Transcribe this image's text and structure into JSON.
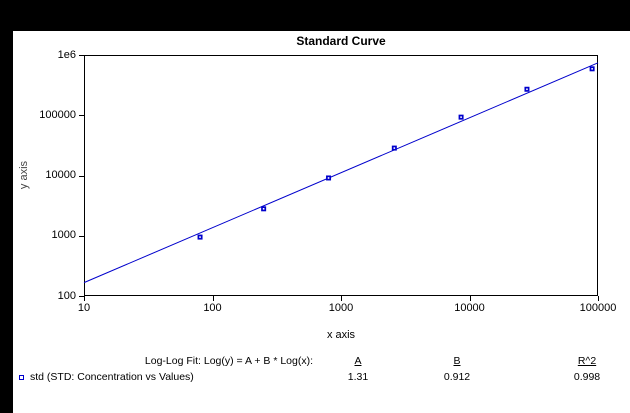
{
  "colors": {
    "page_bg": "#000000",
    "panel_bg": "#FFFFFF",
    "series_blue": "#0000CC",
    "frame_black": "#000000",
    "axis_label_gray": "#444444"
  },
  "chart_data": {
    "type": "scatter",
    "title": "Standard Curve",
    "xlabel": "x axis",
    "ylabel": "y axis",
    "x_scale": "log",
    "y_scale": "log",
    "xlim": [
      10,
      100000
    ],
    "ylim": [
      100,
      1000000
    ],
    "x_ticks": [
      "10",
      "100",
      "1000",
      "10000",
      "100000"
    ],
    "y_ticks": [
      "100",
      "1000",
      "10000",
      "100000",
      "1e6"
    ],
    "grid": false,
    "series": [
      {
        "name": "std (STD: Concentration vs Values)",
        "marker": "open-square",
        "color": "#0000CC",
        "x": [
          80,
          250,
          800,
          2600,
          8600,
          28000,
          90000
        ],
        "y": [
          950,
          2800,
          9100,
          28500,
          93000,
          270000,
          590000
        ]
      }
    ],
    "fit": {
      "type": "log-log-linear",
      "equation": "Log(y) = A + B * Log(x)",
      "A": 1.31,
      "B": 0.912,
      "R2": 0.998
    }
  },
  "annotation": {
    "fit_label": "Log-Log Fit: Log(y) = A + B * Log(x):",
    "col_headers": {
      "a": "A",
      "b": "B",
      "r2": "R^2"
    },
    "values": {
      "a": "1.31",
      "b": "0.912",
      "r2": "0.998"
    },
    "legend_label": "std (STD: Concentration vs Values)"
  }
}
